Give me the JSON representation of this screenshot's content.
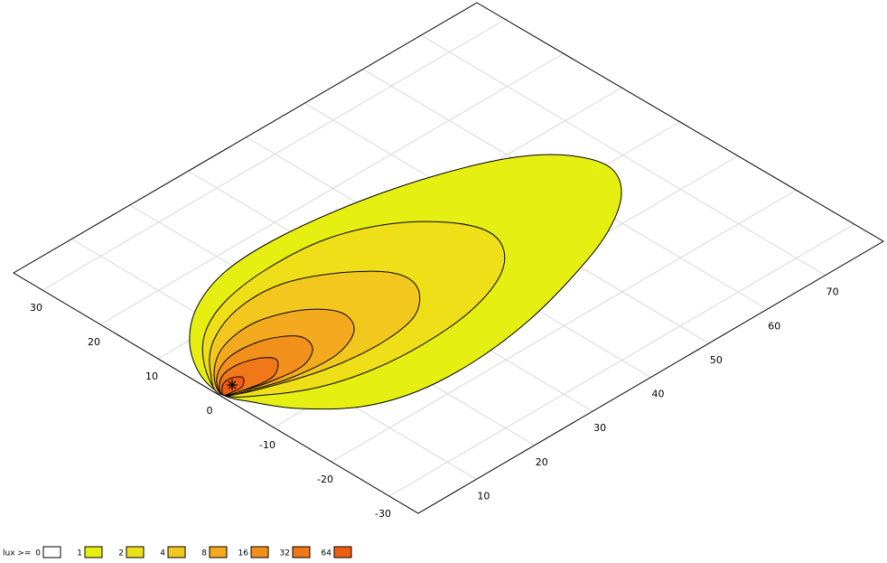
{
  "chart_data": {
    "type": "contour",
    "legend_title": "lux >=",
    "levels": [
      0,
      1,
      2,
      4,
      8,
      16,
      32,
      64
    ],
    "colors": [
      "#ffffff",
      "#e6ef12",
      "#eedf18",
      "#f2c81e",
      "#f4aa1e",
      "#f3901c",
      "#f07818",
      "#ee5e12"
    ],
    "xlim": [
      0,
      80
    ],
    "xticks": [
      10,
      20,
      30,
      40,
      50,
      60,
      70
    ],
    "ylim": [
      35,
      -35
    ],
    "yticks": [
      30,
      20,
      10,
      0,
      -10,
      -20,
      -30
    ],
    "grid": true
  }
}
